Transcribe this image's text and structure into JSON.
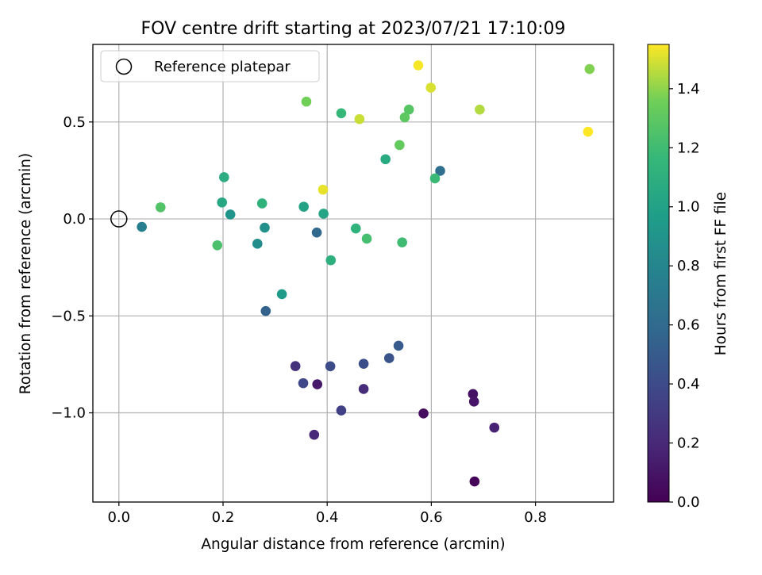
{
  "chart_data": {
    "type": "scatter",
    "title": "FOV centre drift starting at 2023/07/21 17:10:09",
    "xlabel": "Angular distance from reference (arcmin)",
    "ylabel": "Rotation from reference (arcmin)",
    "xlim": [
      -0.05,
      0.95
    ],
    "ylim": [
      -1.46,
      0.9
    ],
    "xticks": [
      0.0,
      0.2,
      0.4,
      0.6,
      0.8
    ],
    "xtick_labels": [
      "0.0",
      "0.2",
      "0.4",
      "0.6",
      "0.8"
    ],
    "yticks": [
      0.5,
      0.0,
      -0.5,
      -1.0
    ],
    "ytick_labels": [
      "0.5",
      "0.0",
      "−0.5",
      "−1.0"
    ],
    "grid": true,
    "legend": {
      "placement": "top-left",
      "entries": [
        {
          "label": "Reference platepar",
          "marker": "open-circle",
          "point": [
            0.0,
            0.0
          ]
        }
      ]
    },
    "colorbar": {
      "label": "Hours from first FF file",
      "range": [
        0.0,
        1.55
      ],
      "ticks": [
        0.0,
        0.2,
        0.4,
        0.6,
        0.8,
        1.0,
        1.2,
        1.4
      ],
      "tick_labels": [
        "0.0",
        "0.2",
        "0.4",
        "0.6",
        "0.8",
        "1.0",
        "1.2",
        "1.4"
      ],
      "colormap": "viridis"
    },
    "points": [
      {
        "x": 0.683,
        "y": -1.354,
        "c": 0.02
      },
      {
        "x": 0.585,
        "y": -1.003,
        "c": 0.06
      },
      {
        "x": 0.68,
        "y": -0.903,
        "c": 0.08
      },
      {
        "x": 0.682,
        "y": -0.942,
        "c": 0.1
      },
      {
        "x": 0.381,
        "y": -0.853,
        "c": 0.12
      },
      {
        "x": 0.721,
        "y": -1.076,
        "c": 0.16
      },
      {
        "x": 0.375,
        "y": -1.113,
        "c": 0.2
      },
      {
        "x": 0.47,
        "y": -0.877,
        "c": 0.22
      },
      {
        "x": 0.339,
        "y": -0.759,
        "c": 0.25
      },
      {
        "x": 0.427,
        "y": -0.988,
        "c": 0.34
      },
      {
        "x": 0.354,
        "y": -0.847,
        "c": 0.38
      },
      {
        "x": 0.406,
        "y": -0.76,
        "c": 0.4
      },
      {
        "x": 0.47,
        "y": -0.747,
        "c": 0.42
      },
      {
        "x": 0.519,
        "y": -0.718,
        "c": 0.45
      },
      {
        "x": 0.537,
        "y": -0.654,
        "c": 0.5
      },
      {
        "x": 0.282,
        "y": -0.475,
        "c": 0.55
      },
      {
        "x": 0.38,
        "y": -0.07,
        "c": 0.58
      },
      {
        "x": 0.617,
        "y": 0.248,
        "c": 0.64
      },
      {
        "x": 0.044,
        "y": -0.041,
        "c": 0.75
      },
      {
        "x": 0.266,
        "y": -0.128,
        "c": 0.85
      },
      {
        "x": 0.28,
        "y": -0.045,
        "c": 0.88
      },
      {
        "x": 0.214,
        "y": 0.023,
        "c": 0.9
      },
      {
        "x": 0.313,
        "y": -0.388,
        "c": 0.95
      },
      {
        "x": 0.355,
        "y": 0.063,
        "c": 1.0
      },
      {
        "x": 0.393,
        "y": 0.027,
        "c": 1.02
      },
      {
        "x": 0.198,
        "y": 0.085,
        "c": 1.04
      },
      {
        "x": 0.512,
        "y": 0.308,
        "c": 1.06
      },
      {
        "x": 0.202,
        "y": 0.215,
        "c": 1.08
      },
      {
        "x": 0.407,
        "y": -0.213,
        "c": 1.1
      },
      {
        "x": 0.275,
        "y": 0.08,
        "c": 1.12
      },
      {
        "x": 0.455,
        "y": -0.049,
        "c": 1.12
      },
      {
        "x": 0.427,
        "y": 0.545,
        "c": 1.16
      },
      {
        "x": 0.607,
        "y": 0.209,
        "c": 1.18
      },
      {
        "x": 0.544,
        "y": -0.121,
        "c": 1.2
      },
      {
        "x": 0.476,
        "y": -0.102,
        "c": 1.22
      },
      {
        "x": 0.189,
        "y": -0.136,
        "c": 1.24
      },
      {
        "x": 0.08,
        "y": 0.06,
        "c": 1.26
      },
      {
        "x": 0.557,
        "y": 0.564,
        "c": 1.28
      },
      {
        "x": 0.549,
        "y": 0.524,
        "c": 1.3
      },
      {
        "x": 0.539,
        "y": 0.381,
        "c": 1.32
      },
      {
        "x": 0.36,
        "y": 0.605,
        "c": 1.36
      },
      {
        "x": 0.904,
        "y": 0.773,
        "c": 1.38
      },
      {
        "x": 0.693,
        "y": 0.564,
        "c": 1.45
      },
      {
        "x": 0.462,
        "y": 0.515,
        "c": 1.48
      },
      {
        "x": 0.599,
        "y": 0.677,
        "c": 1.5
      },
      {
        "x": 0.392,
        "y": 0.151,
        "c": 1.52
      },
      {
        "x": 0.575,
        "y": 0.792,
        "c": 1.54
      },
      {
        "x": 0.901,
        "y": 0.45,
        "c": 1.55
      }
    ]
  }
}
